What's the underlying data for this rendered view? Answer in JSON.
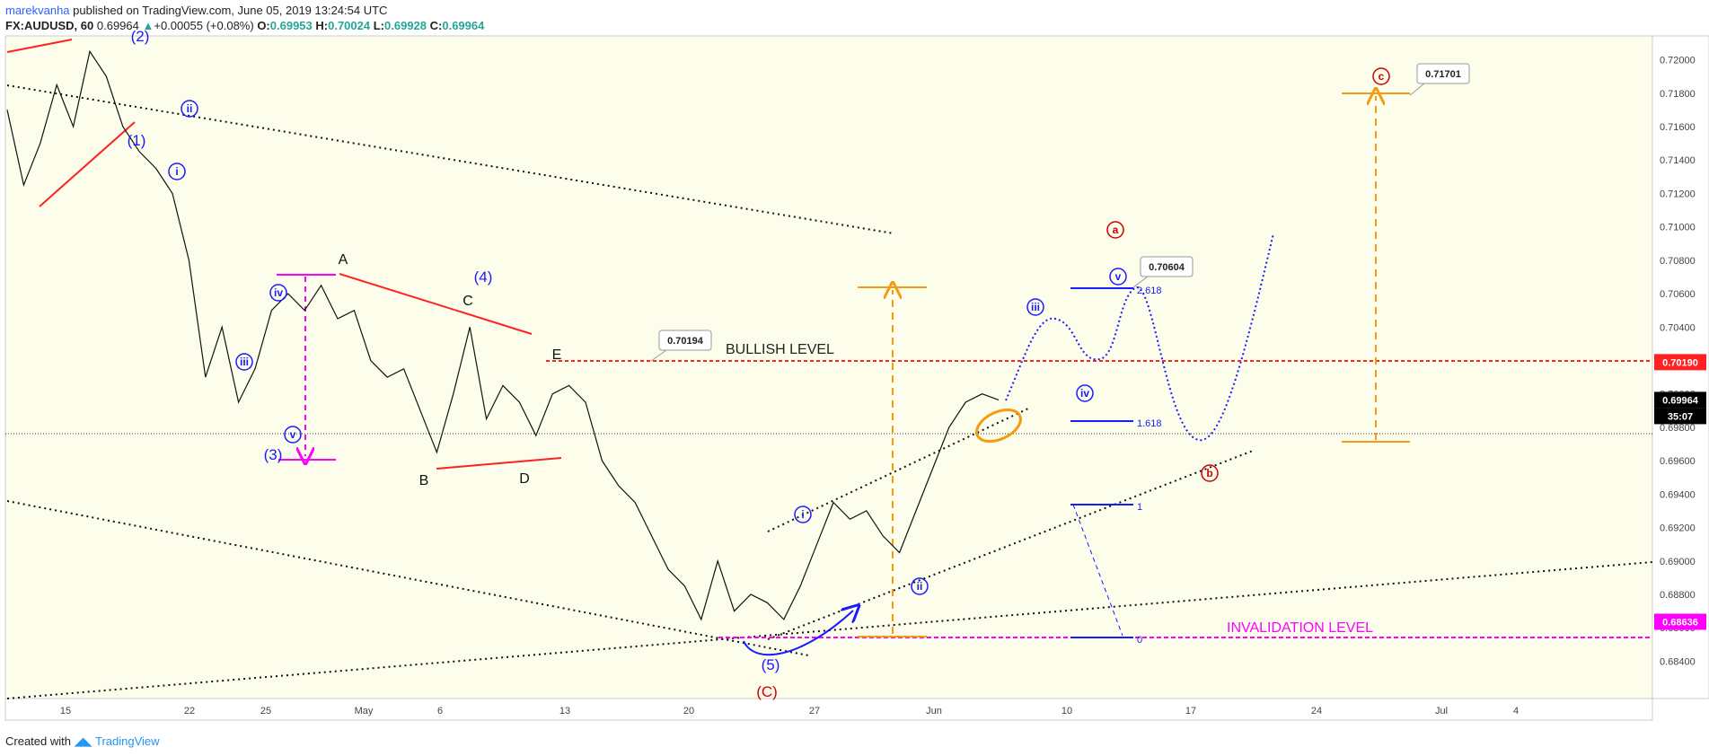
{
  "header": {
    "author": "marekvanha",
    "published_text": "published on TradingView.com, June 05, 2019 13:24:54 UTC",
    "symbol": "FX:AUDUSD, 60",
    "last": "0.69964",
    "change_arrow": "▲",
    "change": "+0.00055 (+0.08%)",
    "o_label": "O:",
    "o": "0.69953",
    "h_label": "H:",
    "h": "0.70024",
    "l_label": "L:",
    "l": "0.69928",
    "c_label": "C:",
    "c": "0.69964"
  },
  "footer": {
    "created_with": "Created with",
    "brand": "TradingView",
    "logo_icon": "tradingview-logo-icon"
  },
  "colors": {
    "bull": "#26a69a",
    "red": "#ff2222",
    "magenta": "#ff00ff",
    "orange": "#f39c12",
    "blue": "#1a1aff",
    "darkred": "#cc0000"
  },
  "chart_data": {
    "type": "line",
    "symbol": "FX:AUDUSD",
    "timeframe": "60",
    "ylim": [
      0.683,
      0.721
    ],
    "x_ticks": [
      "15",
      "22",
      "25",
      "May",
      "6",
      "13",
      "20",
      "27",
      "Jun",
      "10",
      "17",
      "24",
      "Jul",
      "4"
    ],
    "y_ticks": [
      "0.72000",
      "0.71800",
      "0.71600",
      "0.71400",
      "0.71200",
      "0.71000",
      "0.70800",
      "0.70600",
      "0.70400",
      "0.70200",
      "0.70000",
      "0.69800",
      "0.69600",
      "0.69400",
      "0.69200",
      "0.69000",
      "0.68800",
      "0.68600",
      "0.68400"
    ],
    "price_series": {
      "name": "",
      "points": [
        [
          "15",
          0.717
        ],
        [
          "15",
          0.7125
        ],
        [
          "16",
          0.715
        ],
        [
          "17",
          0.7185
        ],
        [
          "18",
          0.716
        ],
        [
          "18",
          0.7205
        ],
        [
          "19",
          0.719
        ],
        [
          "20",
          0.716
        ],
        [
          "21",
          0.7145
        ],
        [
          "22",
          0.7135
        ],
        [
          "22",
          0.712
        ],
        [
          "23",
          0.708
        ],
        [
          "24",
          0.701
        ],
        [
          "24",
          0.704
        ],
        [
          "25",
          0.6995
        ],
        [
          "25",
          0.7015
        ],
        [
          "26",
          0.705
        ],
        [
          "27",
          0.706
        ],
        [
          "28",
          0.705
        ],
        [
          "29",
          0.7065
        ],
        [
          "30",
          0.7045
        ],
        [
          "May 1",
          0.705
        ],
        [
          "May 1",
          0.702
        ],
        [
          "May 2",
          0.701
        ],
        [
          "May 3",
          0.7015
        ],
        [
          "May 4",
          0.699
        ],
        [
          "May 6",
          0.6965
        ],
        [
          "May 7",
          0.7
        ],
        [
          "May 8",
          0.704
        ],
        [
          "May 8",
          0.6985
        ],
        [
          "May 9",
          0.7005
        ],
        [
          "May 10",
          0.6995
        ],
        [
          "May 10",
          0.6975
        ],
        [
          "May 11",
          0.7
        ],
        [
          "May 12",
          0.7005
        ],
        [
          "May 13",
          0.6995
        ],
        [
          "May 14",
          0.696
        ],
        [
          "May 15",
          0.6945
        ],
        [
          "May 16",
          0.6935
        ],
        [
          "May 17",
          0.6915
        ],
        [
          "May 18",
          0.6895
        ],
        [
          "May 19",
          0.6885
        ],
        [
          "May 20",
          0.6865
        ],
        [
          "May 21",
          0.69
        ],
        [
          "May 21",
          0.687
        ],
        [
          "May 22",
          0.688
        ],
        [
          "May 23",
          0.6875
        ],
        [
          "May 24",
          0.6865
        ],
        [
          "May 25",
          0.6885
        ],
        [
          "May 26",
          0.691
        ],
        [
          "May 27",
          0.6935
        ],
        [
          "May 28",
          0.6925
        ],
        [
          "May 29",
          0.693
        ],
        [
          "May 30",
          0.6915
        ],
        [
          "May 31",
          0.6905
        ],
        [
          "Jun 1",
          0.693
        ],
        [
          "Jun 2",
          0.6955
        ],
        [
          "Jun 3",
          0.698
        ],
        [
          "Jun 4",
          0.6995
        ],
        [
          "Jun 5",
          0.7
        ],
        [
          "Jun 5",
          0.69964
        ]
      ]
    },
    "price_labels": [
      {
        "text": "0.70190",
        "value": 0.7019,
        "bg": "#ff2222",
        "fg": "#ffffff"
      },
      {
        "text": "0.69964",
        "value": 0.69964,
        "bg": "#000000",
        "fg": "#ffffff"
      },
      {
        "text": "35:07",
        "value": 0.6989,
        "bg": "#000000",
        "fg": "#ffffff"
      },
      {
        "text": "0.68636",
        "value": 0.68636,
        "bg": "#ff00ff",
        "fg": "#ffffff"
      }
    ],
    "annotations": {
      "bullish_level_label": "BULLISH LEVEL",
      "invalidation_level_label": "INVALIDATION LEVEL",
      "callouts": [
        "0.70194",
        "0.70604",
        "0.71701"
      ],
      "fib_labels": [
        "2.618",
        "1.618",
        "1",
        "0"
      ],
      "wave_labels": [
        "(1)",
        "(2)",
        "(3)",
        "(4)",
        "(5)",
        "(C)",
        "A",
        "B",
        "C",
        "D",
        "E",
        "i",
        "ii",
        "iii",
        "iv",
        "v",
        "a",
        "b",
        "c"
      ]
    }
  }
}
